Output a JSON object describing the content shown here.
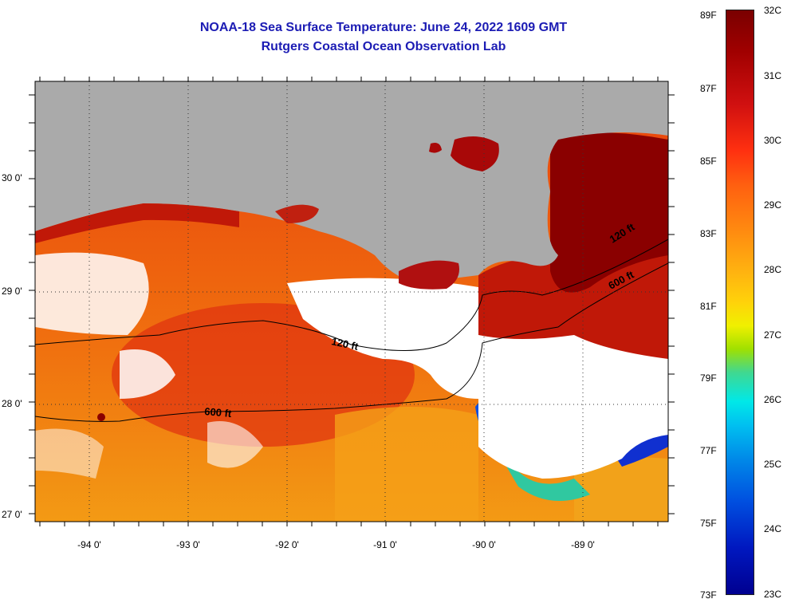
{
  "title": {
    "line1": "NOAA-18 Sea Surface Temperature:  June 24, 2022 1609 GMT",
    "line2": "Rutgers Coastal Ocean Observation Lab"
  },
  "map": {
    "lat_labels": [
      "30 0'",
      "29 0'",
      "28 0'",
      "27 0'"
    ],
    "lon_labels": [
      "-94 0'",
      "-93 0'",
      "-92 0'",
      "-91 0'",
      "-90 0'",
      "-89 0'"
    ],
    "contours": [
      {
        "label": "120 ft"
      },
      {
        "label": "600 ft"
      },
      {
        "label": "120 ft"
      },
      {
        "label": "600 ft"
      }
    ],
    "colors": {
      "land": "#aaaaaa",
      "cloud": "#ffffff",
      "warm": "#e83a0c",
      "hot": "#8a0000",
      "mild": "#f39a14"
    }
  },
  "colorbar": {
    "fahrenheit": [
      "89F",
      "87F",
      "85F",
      "83F",
      "81F",
      "79F",
      "77F",
      "75F",
      "73F"
    ],
    "celsius": [
      "32C",
      "31C",
      "30C",
      "29C",
      "28C",
      "27C",
      "26C",
      "25C",
      "24C",
      "23C"
    ]
  }
}
